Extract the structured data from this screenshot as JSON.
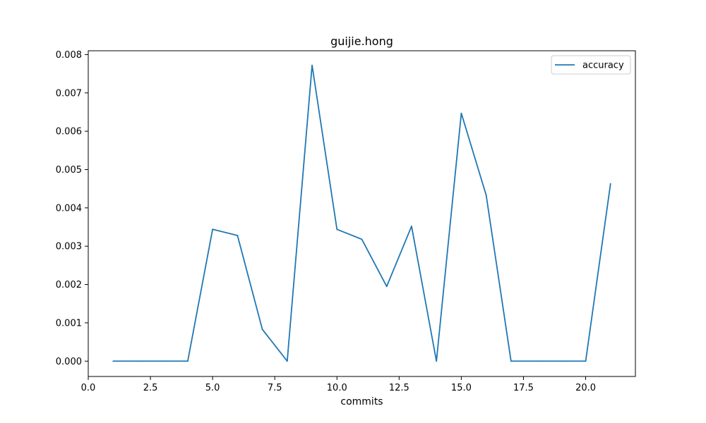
{
  "chart_data": {
    "type": "line",
    "title": "guijie.hong",
    "xlabel": "commits",
    "ylabel": "",
    "xlim": [
      0,
      22
    ],
    "ylim": [
      -0.0004,
      0.0081
    ],
    "xticks": [
      0.0,
      2.5,
      5.0,
      7.5,
      10.0,
      12.5,
      15.0,
      17.5,
      20.0
    ],
    "xtick_labels": [
      "0.0",
      "2.5",
      "5.0",
      "7.5",
      "10.0",
      "12.5",
      "15.0",
      "17.5",
      "20.0"
    ],
    "yticks": [
      0.0,
      0.001,
      0.002,
      0.003,
      0.004,
      0.005,
      0.006,
      0.007,
      0.008
    ],
    "ytick_labels": [
      "0.000",
      "0.001",
      "0.002",
      "0.003",
      "0.004",
      "0.005",
      "0.006",
      "0.007",
      "0.008"
    ],
    "grid": false,
    "legend_position": "top-right",
    "series": [
      {
        "name": "accuracy",
        "color": "#1f77b4",
        "x": [
          1,
          2,
          3,
          4,
          5,
          6,
          7,
          8,
          9,
          10,
          11,
          12,
          13,
          14,
          15,
          16,
          17,
          18,
          19,
          20,
          21
        ],
        "y": [
          0.0,
          0.0,
          0.0,
          0.0,
          0.00344,
          0.00328,
          0.00083,
          0.0,
          0.00772,
          0.00344,
          0.00318,
          0.00195,
          0.00352,
          0.0,
          0.00647,
          0.00433,
          0.0,
          0.0,
          0.0,
          0.0,
          0.00463
        ]
      }
    ]
  }
}
